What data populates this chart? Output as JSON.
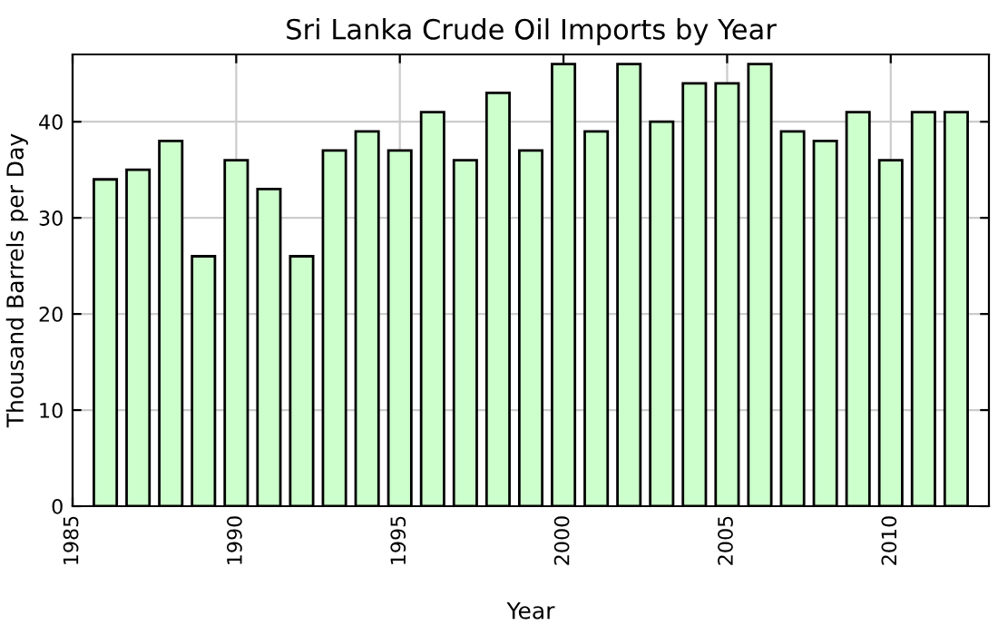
{
  "chart_data": {
    "type": "bar",
    "title": "Sri Lanka Crude Oil Imports by Year",
    "xlabel": "Year",
    "ylabel": "Thousand Barrels per Day",
    "x": [
      1986,
      1987,
      1988,
      1989,
      1990,
      1991,
      1992,
      1993,
      1994,
      1995,
      1996,
      1997,
      1998,
      1999,
      2000,
      2001,
      2002,
      2003,
      2004,
      2005,
      2006,
      2007,
      2008,
      2009,
      2010,
      2011,
      2012
    ],
    "series": [
      {
        "color": "#ccffcc",
        "values": [
          34,
          35,
          38,
          26,
          36,
          33,
          26,
          37,
          39,
          37,
          41,
          36,
          43,
          37,
          46,
          39,
          46,
          40,
          44,
          44,
          46,
          39,
          38,
          41,
          36,
          41,
          41
        ]
      }
    ],
    "xlim": [
      1985,
      2013
    ],
    "xticks": [
      1985,
      1990,
      1995,
      2000,
      2005,
      2010
    ],
    "ylim": [
      0,
      47
    ],
    "yticks": [
      0,
      10,
      20,
      30,
      40
    ],
    "grid": true
  }
}
